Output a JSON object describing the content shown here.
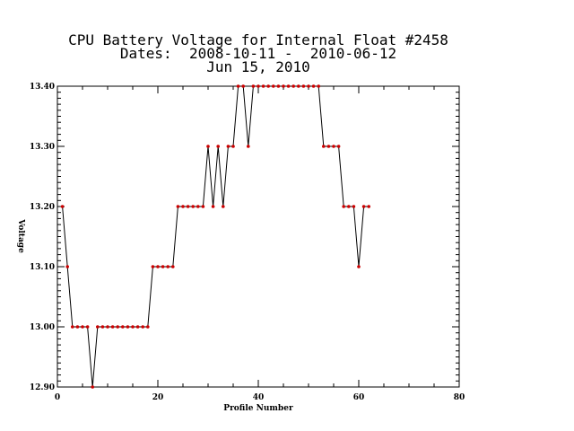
{
  "chart_data": {
    "type": "line",
    "title": "CPU Battery Voltage for Internal Float #2458",
    "subtitle": "Dates:  2008-10-11 -  2010-06-12",
    "date_line": "Jun 15, 2010",
    "xlabel": "Profile Number",
    "ylabel": "Voltage",
    "xlim": [
      0,
      80
    ],
    "ylim": [
      12.9,
      13.4
    ],
    "x_ticks": [
      0,
      20,
      40,
      60,
      80
    ],
    "y_ticks": [
      "12.90",
      "13.00",
      "13.10",
      "13.20",
      "13.30",
      "13.40"
    ],
    "series": [
      {
        "line_color": "#000000",
        "marker_color": "#cc0000",
        "x": [
          1,
          2,
          3,
          4,
          5,
          6,
          7,
          8,
          9,
          10,
          11,
          12,
          13,
          14,
          15,
          16,
          17,
          18,
          19,
          20,
          21,
          22,
          23,
          24,
          25,
          26,
          27,
          28,
          29,
          30,
          31,
          32,
          33,
          34,
          35,
          36,
          37,
          38,
          39,
          40,
          41,
          42,
          43,
          44,
          45,
          46,
          47,
          48,
          49,
          50,
          51,
          52,
          53,
          54,
          55,
          56,
          57,
          58,
          59,
          60,
          61,
          62
        ],
        "y": [
          13.2,
          13.1,
          13.0,
          13.0,
          13.0,
          13.0,
          12.9,
          13.0,
          13.0,
          13.0,
          13.0,
          13.0,
          13.0,
          13.0,
          13.0,
          13.0,
          13.0,
          13.0,
          13.1,
          13.1,
          13.1,
          13.1,
          13.1,
          13.2,
          13.2,
          13.2,
          13.2,
          13.2,
          13.2,
          13.3,
          13.2,
          13.3,
          13.2,
          13.3,
          13.3,
          13.4,
          13.4,
          13.3,
          13.4,
          13.4,
          13.4,
          13.4,
          13.4,
          13.4,
          13.4,
          13.4,
          13.4,
          13.4,
          13.4,
          13.4,
          13.4,
          13.4,
          13.3,
          13.3,
          13.3,
          13.3,
          13.2,
          13.2,
          13.2,
          13.1,
          13.2,
          13.2
        ]
      }
    ]
  }
}
